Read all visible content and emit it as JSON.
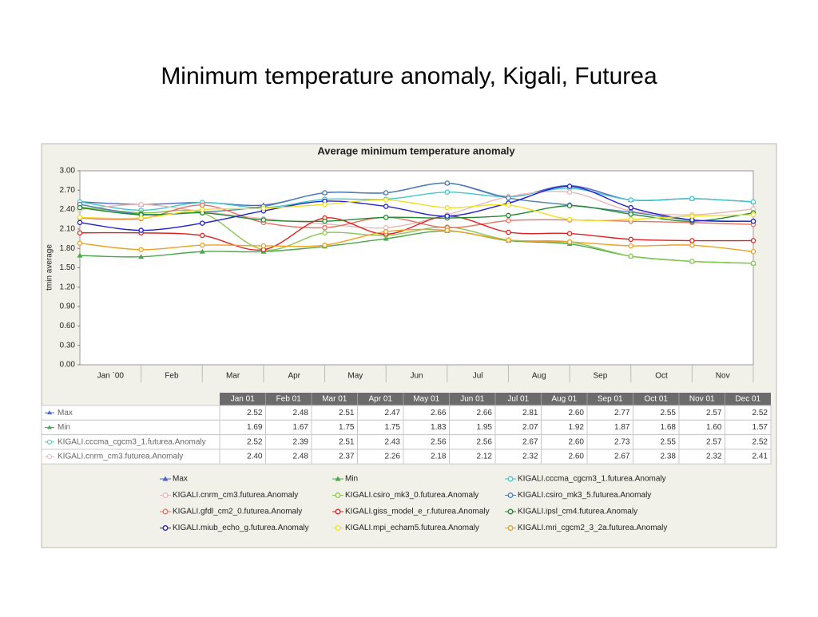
{
  "page_title": "Minimum temperature anomaly, Kigali, Futurea",
  "chart_data": {
    "type": "line",
    "title": "Average minimum temperature anomaly",
    "ylabel": "tmin average",
    "categories": [
      "Jan `00",
      "Feb",
      "Mar",
      "Apr",
      "May",
      "Jun",
      "Jul",
      "Aug",
      "Sep",
      "Oct",
      "Nov",
      null
    ],
    "ylim": [
      0,
      3
    ],
    "yticks": [
      {
        "value": 0,
        "label": "0.00"
      },
      {
        "value": 0.3,
        "label": "0.30"
      },
      {
        "value": 0.6,
        "label": "0.60"
      },
      {
        "value": 0.9,
        "label": "0.90"
      },
      {
        "value": 1.2,
        "label": "1.20"
      },
      {
        "value": 1.5,
        "label": "1.50"
      },
      {
        "value": 1.8,
        "label": "1.80"
      },
      {
        "value": 2.1,
        "label": "2.10"
      },
      {
        "value": 2.4,
        "label": "2.40"
      },
      {
        "value": 2.7,
        "label": "2.70"
      },
      {
        "value": 3,
        "label": "3.00"
      }
    ],
    "table_columns": [
      "Jan 01",
      "Feb 01",
      "Mar 01",
      "Apr 01",
      "May 01",
      "Jun 01",
      "Jul 01",
      "Aug 01",
      "Sep 01",
      "Oct 01",
      "Nov 01",
      "Dec 01"
    ],
    "series": [
      {
        "name": "Max",
        "color": "#4a64c8",
        "marker": "triangle",
        "values": [
          2.52,
          2.48,
          2.51,
          2.47,
          2.66,
          2.66,
          2.81,
          2.6,
          2.77,
          2.55,
          2.57,
          2.52
        ],
        "value_labels": [
          "2.52",
          "2.48",
          "2.51",
          "2.47",
          "2.66",
          "2.66",
          "2.81",
          "2.60",
          "2.77",
          "2.55",
          "2.57",
          "2.52"
        ]
      },
      {
        "name": "Min",
        "color": "#4aa84a",
        "marker": "triangle",
        "values": [
          1.69,
          1.67,
          1.75,
          1.75,
          1.83,
          1.95,
          2.07,
          1.92,
          1.87,
          1.68,
          1.6,
          1.57
        ],
        "value_labels": [
          "1.69",
          "1.67",
          "1.75",
          "1.75",
          "1.83",
          "1.95",
          "2.07",
          "1.92",
          "1.87",
          "1.68",
          "1.60",
          "1.57"
        ]
      },
      {
        "name": "KIGALI.cccma_cgcm3_1.futurea.Anomaly",
        "color": "#40c8c8",
        "marker": "circle",
        "values": [
          2.52,
          2.39,
          2.51,
          2.43,
          2.56,
          2.56,
          2.67,
          2.6,
          2.73,
          2.55,
          2.57,
          2.52
        ],
        "value_labels": [
          "2.52",
          "2.39",
          "2.51",
          "2.43",
          "2.56",
          "2.56",
          "2.67",
          "2.60",
          "2.73",
          "2.55",
          "2.57",
          "2.52"
        ]
      },
      {
        "name": "KIGALI.cnrm_cm3.futurea.Anomaly",
        "color": "#e8b8b8",
        "marker": "circle",
        "values": [
          2.4,
          2.48,
          2.37,
          2.26,
          2.18,
          2.12,
          2.32,
          2.6,
          2.67,
          2.38,
          2.32,
          2.41
        ],
        "value_labels": [
          "2.40",
          "2.48",
          "2.37",
          "2.26",
          "2.18",
          "2.12",
          "2.32",
          "2.60",
          "2.67",
          "2.38",
          "2.32",
          "2.41"
        ]
      },
      {
        "name": "KIGALI.csiro_mk3_0.futurea.Anomaly",
        "color": "#88c850",
        "marker": "circle",
        "values": [
          2.44,
          2.35,
          2.35,
          1.78,
          2.04,
          2.0,
          2.13,
          1.93,
          1.9,
          1.68,
          1.6,
          1.57
        ]
      },
      {
        "name": "KIGALI.csiro_mk3_5.futurea.Anomaly",
        "color": "#5080b0",
        "marker": "circle",
        "values": [
          2.48,
          2.33,
          2.36,
          2.45,
          2.66,
          2.66,
          2.81,
          2.58,
          2.47,
          2.36,
          2.24,
          2.22
        ]
      },
      {
        "name": "KIGALI.gfdl_cm2_0.futurea.Anomaly",
        "color": "#e87060",
        "marker": "circle",
        "values": [
          2.27,
          2.26,
          2.47,
          2.2,
          2.12,
          2.28,
          2.12,
          2.23,
          2.24,
          2.22,
          2.2,
          2.17
        ]
      },
      {
        "name": "KIGALI.giss_model_e_r.futurea.Anomaly",
        "color": "#e02020",
        "marker": "circle",
        "values": [
          2.04,
          2.04,
          2.0,
          1.78,
          2.27,
          2.02,
          2.3,
          2.05,
          2.03,
          1.94,
          1.92,
          1.92
        ]
      },
      {
        "name": "KIGALI.ipsl_cm4.futurea.Anomaly",
        "color": "#208a30",
        "marker": "circle",
        "values": [
          2.43,
          2.32,
          2.35,
          2.24,
          2.22,
          2.28,
          2.27,
          2.31,
          2.46,
          2.33,
          2.22,
          2.35
        ]
      },
      {
        "name": "KIGALI.miub_echo_g.futurea.Anomaly",
        "color": "#2020d0",
        "marker": "circle",
        "values": [
          2.2,
          2.08,
          2.19,
          2.38,
          2.53,
          2.45,
          2.3,
          2.5,
          2.76,
          2.43,
          2.24,
          2.22
        ]
      },
      {
        "name": "KIGALI.mpi_echam5.futurea.Anomaly",
        "color": "#f0e020",
        "marker": "circle",
        "values": [
          2.28,
          2.27,
          2.4,
          2.42,
          2.48,
          2.55,
          2.43,
          2.47,
          2.25,
          2.25,
          2.3,
          2.32
        ]
      },
      {
        "name": "KIGALI.mri_cgcm2_3_2a.futurea.Anomaly",
        "color": "#f0a020",
        "marker": "circle",
        "values": [
          1.88,
          1.78,
          1.85,
          1.84,
          1.85,
          2.06,
          2.08,
          1.93,
          1.9,
          1.84,
          1.85,
          1.75
        ]
      }
    ]
  }
}
